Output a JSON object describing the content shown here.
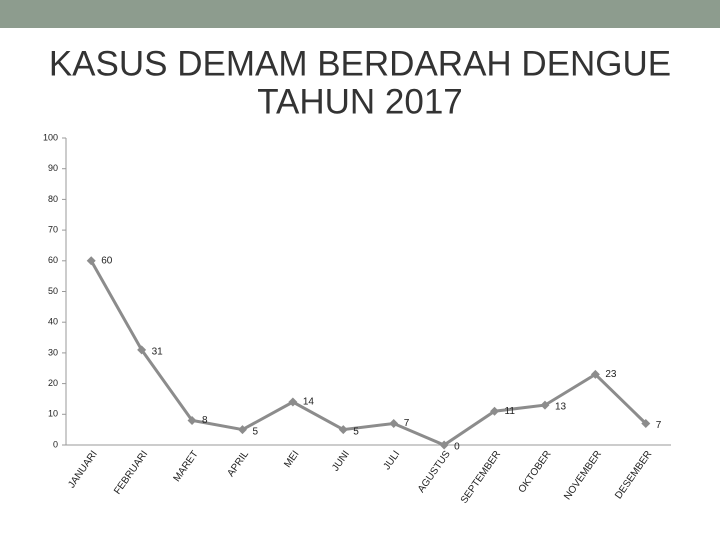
{
  "chart_data": {
    "type": "line",
    "title": "KASUS DEMAM BERDARAH DENGUE",
    "subtitle": "TAHUN 2017",
    "categories": [
      "JANUARI",
      "FEBRUARI",
      "MARET",
      "APRIL",
      "MEI",
      "JUNI",
      "JULI",
      "AGUSTUS",
      "SEPTEMBER",
      "OKTOBER",
      "NOVEMBER",
      "DESEMBER"
    ],
    "values": [
      60,
      31,
      8,
      5,
      14,
      5,
      7,
      0,
      11,
      13,
      23,
      7
    ],
    "color": "#8c8c8c",
    "ylim": [
      0,
      100
    ],
    "yticks": [
      0,
      10,
      20,
      30,
      40,
      50,
      60,
      70,
      80,
      90,
      100
    ],
    "grid": false
  }
}
